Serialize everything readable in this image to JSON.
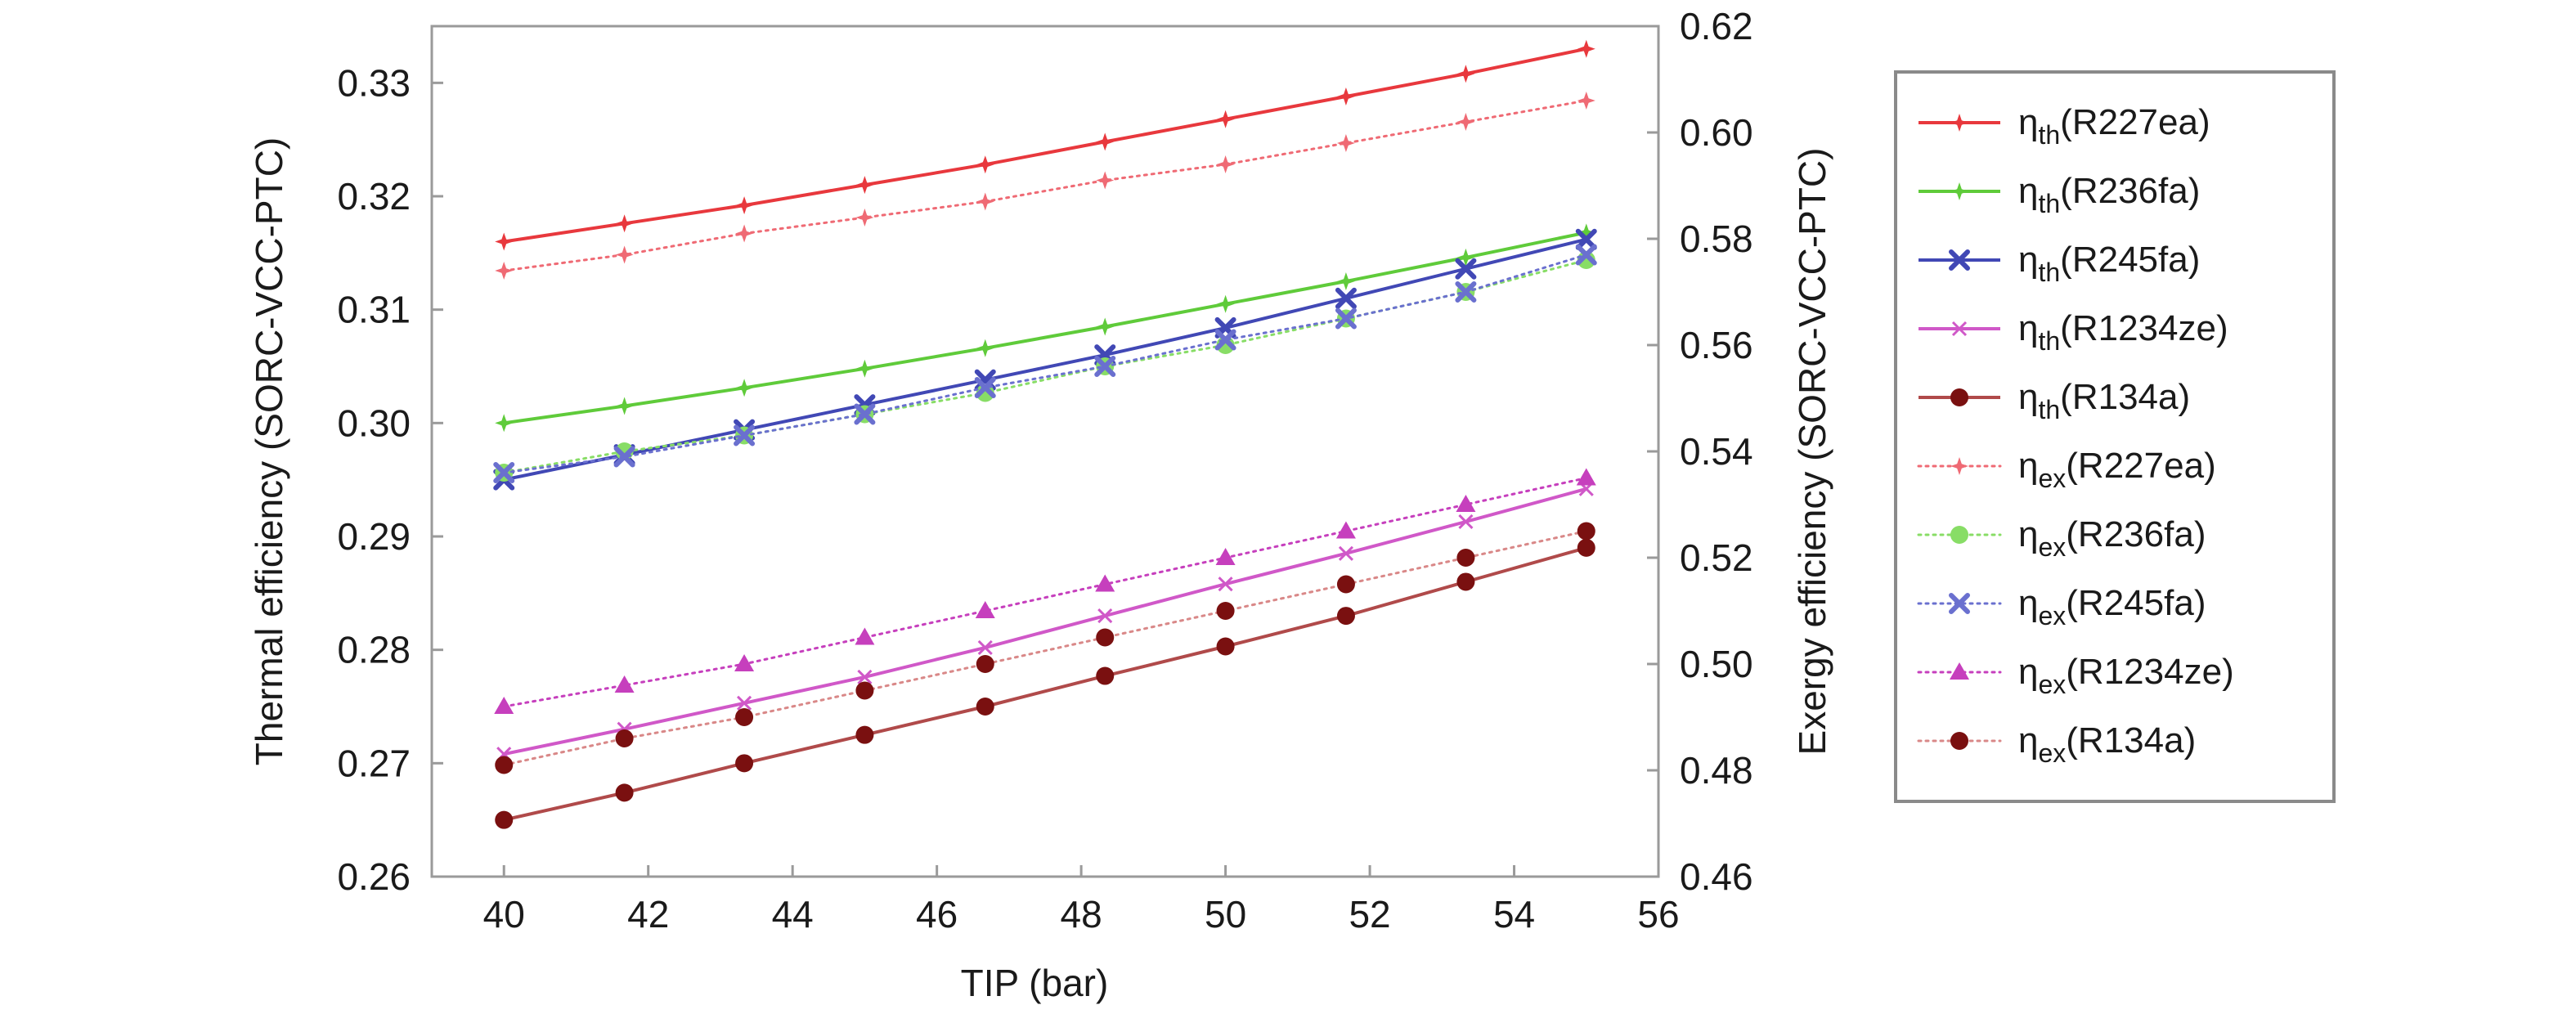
{
  "chart_data": {
    "type": "line",
    "x_axis": {
      "label": "TIP (bar)",
      "range": [
        39,
        56
      ],
      "ticks": [
        40,
        42,
        44,
        46,
        48,
        50,
        52,
        54,
        56
      ]
    },
    "y_left": {
      "label": "Thermal efficiency (SORC-VCC-PTC)",
      "range": [
        0.26,
        0.335
      ],
      "ticks": [
        "0.26",
        "0.27",
        "0.28",
        "0.29",
        "0.30",
        "0.31",
        "0.32",
        "0.33"
      ]
    },
    "y_right": {
      "label": "Exergy efficiency (SORC-VCC-PTC)",
      "range": [
        0.46,
        0.62
      ],
      "ticks": [
        "0.46",
        "0.48",
        "0.50",
        "0.52",
        "0.54",
        "0.56",
        "0.58",
        "0.60",
        "0.62"
      ]
    },
    "grid": false,
    "legend_position": "right",
    "x": [
      40,
      41.67,
      43.33,
      45,
      46.67,
      48.33,
      50,
      51.67,
      53.33,
      55
    ],
    "series": [
      {
        "name": "R227ea",
        "metric": "th",
        "legend_main": "η",
        "legend_sub": "th",
        "legend_tail": "(R227ea)",
        "axis": "left",
        "color": "#e8383d",
        "line": "solid",
        "marker": "star",
        "values": [
          0.316,
          0.3176,
          0.3192,
          0.321,
          0.3228,
          0.3248,
          0.3268,
          0.3288,
          0.3308,
          0.333
        ]
      },
      {
        "name": "R236fa",
        "metric": "th",
        "legend_main": "η",
        "legend_sub": "th",
        "legend_tail": "(R236fa)",
        "axis": "left",
        "color": "#5fcb3a",
        "line": "solid",
        "marker": "star",
        "values": [
          0.3,
          0.3015,
          0.3031,
          0.3048,
          0.3066,
          0.3085,
          0.3105,
          0.3125,
          0.3146,
          0.3168
        ]
      },
      {
        "name": "R245fa",
        "metric": "th",
        "legend_main": "η",
        "legend_sub": "th",
        "legend_tail": "(R245fa)",
        "axis": "left",
        "color": "#4148b5",
        "line": "solid",
        "marker": "x",
        "values": [
          0.295,
          0.2972,
          0.2994,
          0.3016,
          0.3038,
          0.306,
          0.3084,
          0.311,
          0.3136,
          0.3162
        ]
      },
      {
        "name": "R1234ze",
        "metric": "th",
        "legend_main": "η",
        "legend_sub": "th",
        "legend_tail": "(R1234ze)",
        "axis": "left",
        "color": "#d058c8",
        "line": "solid",
        "marker": "cross",
        "values": [
          0.2708,
          0.273,
          0.2753,
          0.2776,
          0.2802,
          0.283,
          0.2858,
          0.2885,
          0.2913,
          0.2942
        ]
      },
      {
        "name": "R134a",
        "metric": "th",
        "legend_main": "η",
        "legend_sub": "th",
        "legend_tail": "(R134a)",
        "axis": "left",
        "color": "#b04a4a",
        "line": "solid",
        "marker": "dot",
        "marker_color": "#7a1010",
        "values": [
          0.265,
          0.2674,
          0.27,
          0.2725,
          0.275,
          0.2777,
          0.2803,
          0.283,
          0.286,
          0.289
        ]
      },
      {
        "name": "R227ea",
        "metric": "ex",
        "legend_main": "η",
        "legend_sub": "ex",
        "legend_tail": "(R227ea)",
        "axis": "right",
        "color": "#ef6a74",
        "line": "dotted",
        "marker": "star",
        "values": [
          0.574,
          0.577,
          0.581,
          0.584,
          0.587,
          0.591,
          0.594,
          0.598,
          0.602,
          0.606
        ]
      },
      {
        "name": "R236fa",
        "metric": "ex",
        "legend_main": "η",
        "legend_sub": "ex",
        "legend_tail": "(R236fa)",
        "axis": "right",
        "color": "#88dd66",
        "line": "dotted",
        "marker": "dot",
        "values": [
          0.536,
          0.54,
          0.543,
          0.547,
          0.551,
          0.556,
          0.56,
          0.565,
          0.57,
          0.576
        ]
      },
      {
        "name": "R245fa",
        "metric": "ex",
        "legend_main": "η",
        "legend_sub": "ex",
        "legend_tail": "(R245fa)",
        "axis": "right",
        "color": "#6a70cf",
        "line": "dotted",
        "marker": "x",
        "values": [
          0.536,
          0.539,
          0.543,
          0.547,
          0.552,
          0.556,
          0.561,
          0.565,
          0.57,
          0.577
        ]
      },
      {
        "name": "R1234ze",
        "metric": "ex",
        "legend_main": "η",
        "legend_sub": "ex",
        "legend_tail": "(R1234ze)",
        "axis": "right",
        "color": "#c63fbd",
        "line": "dotted",
        "marker": "triangle",
        "values": [
          0.492,
          0.496,
          0.5,
          0.505,
          0.51,
          0.515,
          0.52,
          0.525,
          0.53,
          0.535
        ]
      },
      {
        "name": "R134a",
        "metric": "ex",
        "legend_main": "η",
        "legend_sub": "ex",
        "legend_tail": "(R134a)",
        "axis": "right",
        "color": "#d98888",
        "line": "dotted",
        "marker": "dot",
        "marker_color": "#7a1010",
        "values": [
          0.481,
          0.486,
          0.49,
          0.495,
          0.5,
          0.505,
          0.51,
          0.515,
          0.52,
          0.525
        ]
      }
    ]
  }
}
